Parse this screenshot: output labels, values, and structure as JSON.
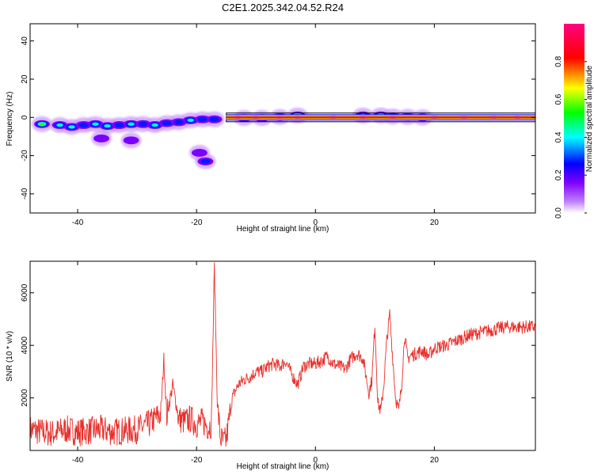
{
  "title": "C2E1.2025.342.04.52.R24",
  "chart_data": [
    {
      "type": "heatmap",
      "xlabel": "Height of straight line (km)",
      "ylabel": "Frequency (Hz)",
      "xlim": [
        -48,
        37
      ],
      "ylim": [
        -50,
        49
      ],
      "xticks": [
        -40,
        -20,
        0,
        20
      ],
      "yticks": [
        -40,
        -20,
        0,
        20,
        40
      ],
      "colorbar": {
        "label": "Normalized spectral amplitude",
        "range": [
          0,
          1
        ],
        "ticks": [
          "0.0",
          "0.2",
          "0.4",
          "0.6",
          "0.8"
        ],
        "colormap": [
          "#ffffff",
          "#8000ff",
          "#0000ff",
          "#00ffff",
          "#00ff00",
          "#ffff00",
          "#ff0000",
          "#ff0080"
        ]
      },
      "band": {
        "x_start": -15,
        "x_end": 37,
        "frequency": 0,
        "amplitude": 0.95
      },
      "blobs": [
        {
          "x": -46,
          "f": -3.5,
          "a": 0.6
        },
        {
          "x": -43,
          "f": -4,
          "a": 0.45
        },
        {
          "x": -41,
          "f": -5,
          "a": 0.5
        },
        {
          "x": -39,
          "f": -4,
          "a": 0.35
        },
        {
          "x": -37,
          "f": -3.5,
          "a": 0.45
        },
        {
          "x": -35,
          "f": -4.5,
          "a": 0.5
        },
        {
          "x": -33,
          "f": -4,
          "a": 0.4
        },
        {
          "x": -31,
          "f": -3.5,
          "a": 0.45
        },
        {
          "x": -29,
          "f": -3.5,
          "a": 0.35
        },
        {
          "x": -27,
          "f": -4,
          "a": 0.45
        },
        {
          "x": -25,
          "f": -3,
          "a": 0.35
        },
        {
          "x": -23,
          "f": -2.5,
          "a": 0.4
        },
        {
          "x": -21,
          "f": -1.5,
          "a": 0.45
        },
        {
          "x": -19,
          "f": -1,
          "a": 0.4
        },
        {
          "x": -17,
          "f": -1,
          "a": 0.35
        },
        {
          "x": -12,
          "f": -0.3,
          "a": 0.65
        },
        {
          "x": -9,
          "f": -0.3,
          "a": 0.55
        },
        {
          "x": -6,
          "f": 0.2,
          "a": 0.6
        },
        {
          "x": -3,
          "f": 1,
          "a": 0.75
        },
        {
          "x": 8,
          "f": 1,
          "a": 0.5
        },
        {
          "x": 11,
          "f": 1,
          "a": 0.6
        },
        {
          "x": 13,
          "f": 0.5,
          "a": 0.55
        },
        {
          "x": 15.5,
          "f": 0.3,
          "a": 0.5
        },
        {
          "x": 18,
          "f": 0,
          "a": 0.45
        },
        {
          "x": -18.5,
          "f": -23,
          "a": 0.3
        },
        {
          "x": -19.5,
          "f": -18.5,
          "a": 0.25
        },
        {
          "x": -36,
          "f": -11,
          "a": 0.2
        },
        {
          "x": -31,
          "f": -12,
          "a": 0.2
        }
      ]
    },
    {
      "type": "line",
      "xlabel": "Height of straight line (km)",
      "ylabel": "SNR (10 * v/v)",
      "xlim": [
        -48,
        37
      ],
      "ylim": [
        0,
        7200
      ],
      "xticks": [
        -40,
        -20,
        0,
        20
      ],
      "yticks": [
        2000,
        4000,
        6000
      ],
      "series": [
        {
          "name": "SNR",
          "color": "#e8302c",
          "x": [
            -48,
            -46,
            -44,
            -42,
            -40,
            -38,
            -36,
            -34,
            -32,
            -30,
            -28,
            -26,
            -25.5,
            -25,
            -24,
            -23,
            -22,
            -21,
            -20,
            -19,
            -18,
            -17.5,
            -17,
            -16.5,
            -16,
            -15.5,
            -15,
            -14,
            -13,
            -12,
            -11,
            -10,
            -9,
            -8,
            -7,
            -6,
            -5,
            -4,
            -3,
            -2,
            -1,
            0,
            1,
            2,
            3,
            4,
            5,
            6,
            7,
            8,
            9,
            9.5,
            10,
            10.5,
            11,
            11.5,
            12,
            12.5,
            13,
            13.5,
            14,
            14.5,
            15,
            15.5,
            16,
            17,
            18,
            19,
            20,
            22,
            24,
            26,
            28,
            30,
            32,
            34,
            36,
            37
          ],
          "values": [
            800,
            700,
            650,
            800,
            700,
            750,
            800,
            700,
            750,
            800,
            1000,
            1400,
            3500,
            1300,
            2500,
            1200,
            1100,
            1200,
            1000,
            1100,
            900,
            1000,
            7000,
            1800,
            500,
            300,
            400,
            2000,
            2500,
            2700,
            2800,
            3000,
            3000,
            3200,
            3300,
            3200,
            3400,
            2900,
            2500,
            3200,
            3300,
            3300,
            3400,
            3600,
            3300,
            3200,
            3100,
            3500,
            3700,
            3500,
            2200,
            2700,
            4800,
            1800,
            1500,
            2500,
            4200,
            5200,
            3500,
            2000,
            1500,
            2500,
            4400,
            3500,
            3600,
            3700,
            3800,
            3600,
            3900,
            4000,
            4200,
            4400,
            4500,
            4600,
            4700,
            4700,
            4700,
            4700
          ]
        }
      ]
    }
  ]
}
